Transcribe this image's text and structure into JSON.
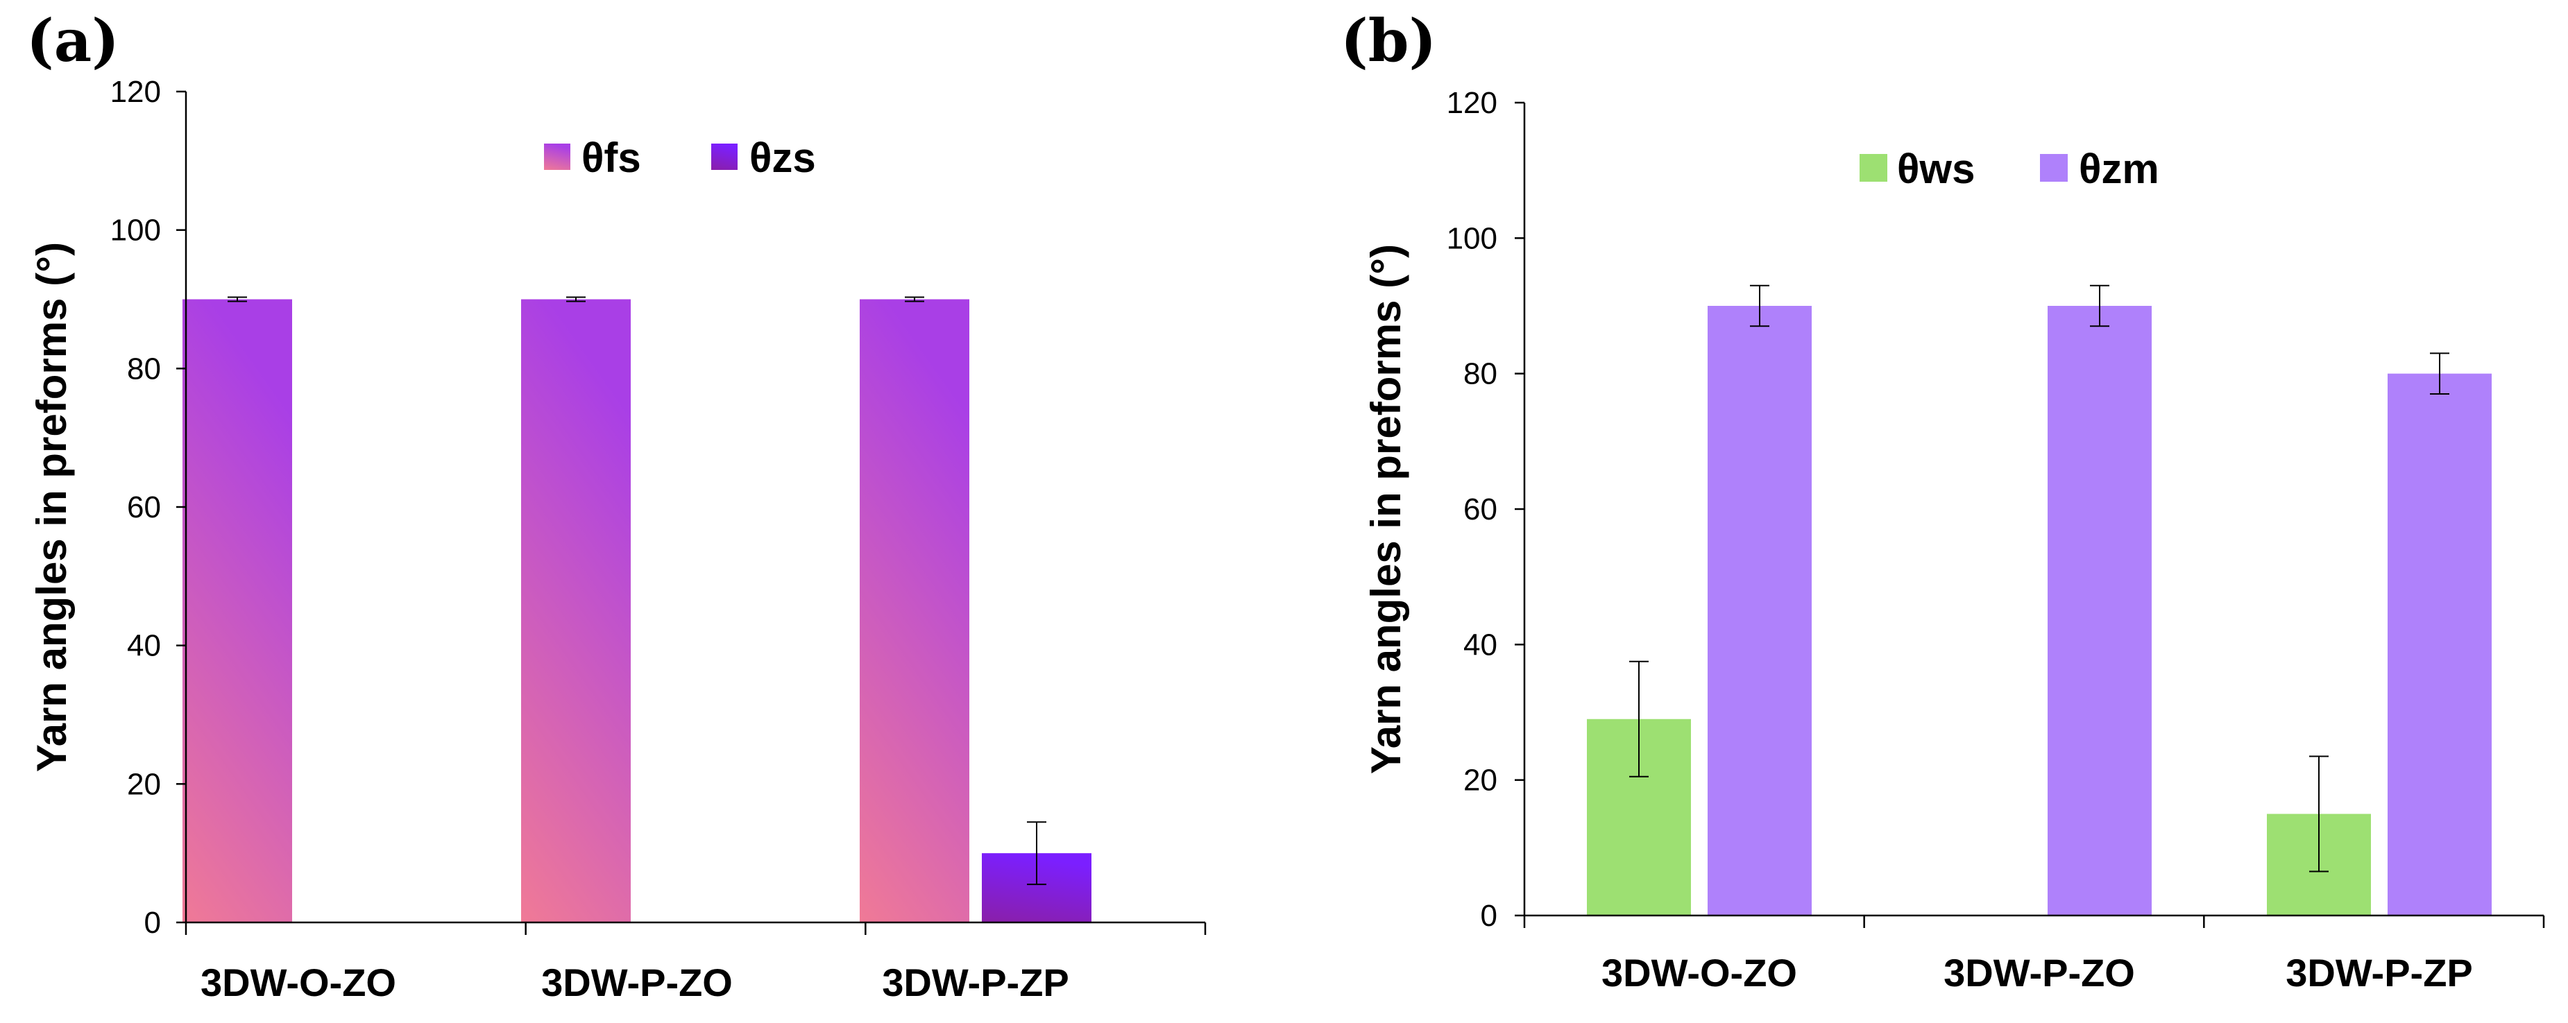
{
  "chart_data": [
    {
      "panel_label": "(a)",
      "type": "bar",
      "categories": [
        "3DW-O-ZO",
        "3DW-P-ZO",
        "3DW-P-ZP"
      ],
      "ylabel": "Yarn angles in preforms (°)",
      "ylim": [
        0,
        120
      ],
      "yticks": [
        0,
        20,
        40,
        60,
        80,
        100,
        120
      ],
      "grid": false,
      "legend_position": "top-center",
      "series": [
        {
          "name": "θfs",
          "values": [
            90,
            90,
            90
          ],
          "errors": [
            0.3,
            0.3,
            0.3
          ],
          "color_top": "#A93FE6",
          "color_bottom": "#F07A96"
        },
        {
          "name": "θzs",
          "values": [
            0,
            0,
            10
          ],
          "errors": [
            0,
            0,
            4.5
          ],
          "color_top": "#7B1FFF",
          "color_bottom": "#8A1FA8"
        }
      ]
    },
    {
      "panel_label": "(b)",
      "type": "bar",
      "categories": [
        "3DW-O-ZO",
        "3DW-P-ZO",
        "3DW-P-ZP"
      ],
      "ylabel": "Yarn angles in preforms (°)",
      "ylim": [
        0,
        120
      ],
      "yticks": [
        0,
        20,
        40,
        60,
        80,
        100,
        120
      ],
      "grid": false,
      "legend_position": "top-center",
      "series": [
        {
          "name": "θws",
          "values": [
            29,
            0,
            15
          ],
          "errors": [
            8.5,
            0,
            8.5
          ],
          "color_top": "#9DE072",
          "color_bottom": "#9DE072"
        },
        {
          "name": "θzm",
          "values": [
            90,
            90,
            80
          ],
          "errors": [
            3,
            3,
            3
          ],
          "color_top": "#AF81FB",
          "color_bottom": "#AF81FB"
        }
      ]
    }
  ]
}
